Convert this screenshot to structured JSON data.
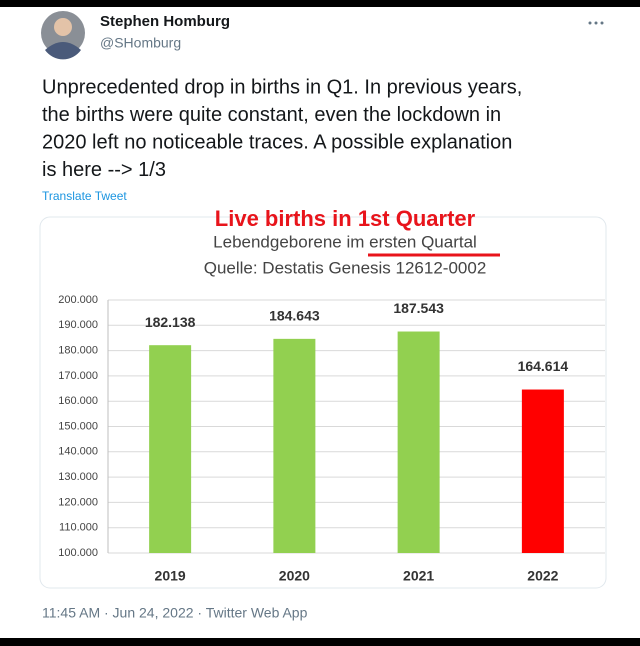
{
  "tweet": {
    "name": "Stephen Homburg",
    "handle": "@SHomburg",
    "text_lines": [
      "Unprecedented drop in births in Q1. In previous years,",
      "the births were quite constant, even the lockdown in",
      "2020 left no noticeable traces. A possible explanation",
      "is here --> 1/3"
    ],
    "translate": "Translate Tweet",
    "timestamp": "11:45 AM · Jun 24, 2022 · Twitter Web App"
  },
  "chart_data": {
    "type": "bar",
    "title": "Live births in 1st Quarter",
    "subtitle": "Lebendgeborene im ersten Quartal",
    "source": "Quelle: Destatis Genesis 12612-0002",
    "categories": [
      "2019",
      "2020",
      "2021",
      "2022"
    ],
    "values": [
      182138,
      184643,
      187543,
      164614
    ],
    "value_labels": [
      "182.138",
      "184.643",
      "187.543",
      "164.614"
    ],
    "colors": [
      "#92d050",
      "#92d050",
      "#92d050",
      "#ff0000"
    ],
    "ylim": [
      100000,
      200000
    ],
    "yticks": [
      {
        "value": 100000,
        "label": "100.000"
      },
      {
        "value": 110000,
        "label": "110.000"
      },
      {
        "value": 120000,
        "label": "120.000"
      },
      {
        "value": 130000,
        "label": "130.000"
      },
      {
        "value": 140000,
        "label": "140.000"
      },
      {
        "value": 150000,
        "label": "150.000"
      },
      {
        "value": 160000,
        "label": "160.000"
      },
      {
        "value": 170000,
        "label": "170.000"
      },
      {
        "value": 180000,
        "label": "180.000"
      },
      {
        "value": 190000,
        "label": "190.000"
      },
      {
        "value": 200000,
        "label": "200.000"
      }
    ],
    "grid": true
  }
}
